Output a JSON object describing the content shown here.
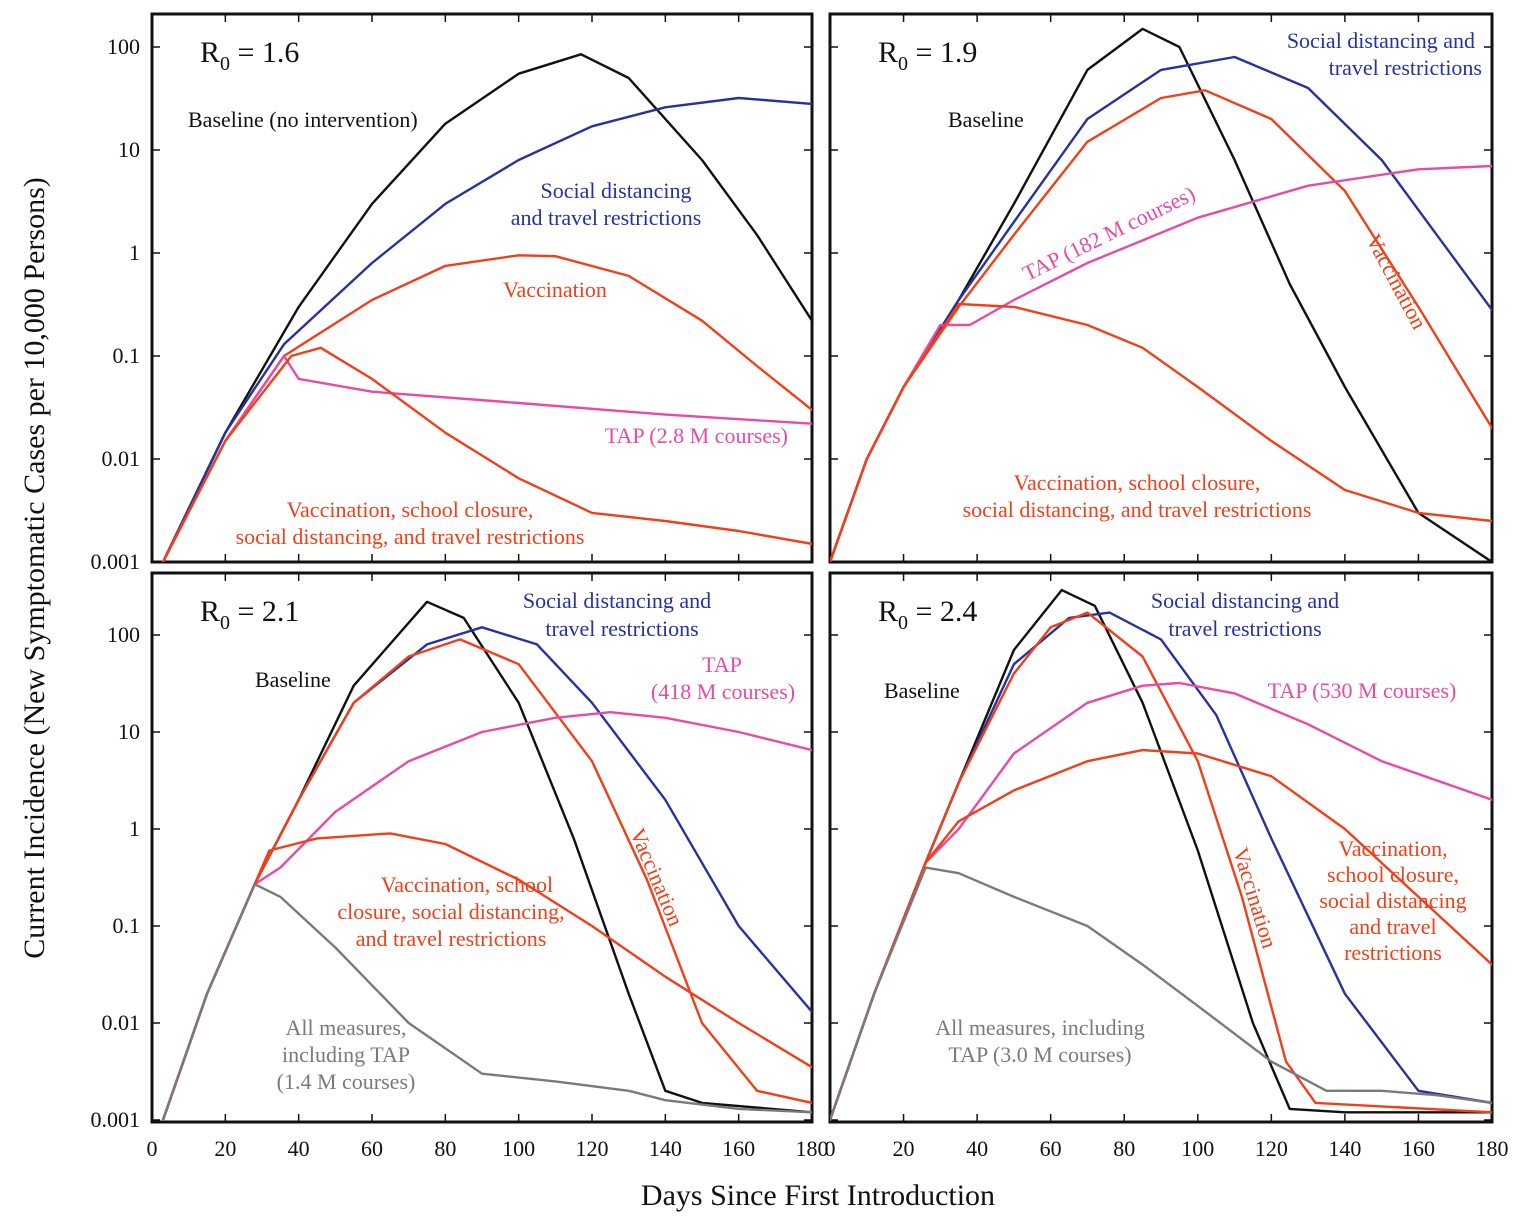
{
  "figure": {
    "ylabel": "Current Incidence (New Symptomatic Cases per 10,000 Persons)",
    "xlabel": "Days Since First Introduction"
  },
  "colors": {
    "baseline": "#111111",
    "social": "#2632a0",
    "vaccination": "#f0401a",
    "combined": "#f0401a",
    "tap": "#e84aa6",
    "all": "#7a7a7a"
  },
  "chart_data": [
    {
      "type": "line",
      "title_main": "R",
      "title_sub": "0",
      "title_rest": " = 1.6",
      "xlim": [
        0,
        180
      ],
      "ylim": [
        0.001,
        100
      ],
      "yscale": "log",
      "xticks": [],
      "yticks": [
        "0.001",
        "0.01",
        "0.1",
        "1",
        "10",
        "100"
      ],
      "series": [
        {
          "key": "baseline",
          "name": "Baseline (no intervention)",
          "x": [
            3,
            20,
            40,
            60,
            80,
            100,
            117,
            130,
            150,
            165,
            180
          ],
          "y": [
            0.001,
            0.018,
            0.3,
            3,
            18,
            55,
            85,
            50,
            8,
            1.5,
            0.22
          ]
        },
        {
          "key": "social",
          "name": "Social distancing and travel restrictions",
          "x": [
            3,
            20,
            36,
            60,
            80,
            100,
            120,
            140,
            160,
            180
          ],
          "y": [
            0.001,
            0.018,
            0.13,
            0.8,
            3,
            8,
            17,
            26,
            32,
            28
          ]
        },
        {
          "key": "vaccination",
          "name": "Vaccination",
          "x": [
            3,
            20,
            36,
            60,
            80,
            100,
            110,
            130,
            150,
            165,
            180
          ],
          "y": [
            0.001,
            0.015,
            0.1,
            0.35,
            0.75,
            0.95,
            0.93,
            0.6,
            0.22,
            0.08,
            0.03
          ]
        },
        {
          "key": "tap",
          "name": "TAP (2.8 M courses)",
          "x": [
            3,
            20,
            36,
            40,
            60,
            100,
            140,
            180
          ],
          "y": [
            0.001,
            0.015,
            0.1,
            0.06,
            0.045,
            0.035,
            0.027,
            0.022
          ]
        },
        {
          "key": "combined",
          "name": "Vaccination, school closure, social distancing, and travel restrictions",
          "x": [
            3,
            20,
            38,
            46,
            60,
            80,
            100,
            120,
            140,
            160,
            180
          ],
          "y": [
            0.001,
            0.015,
            0.1,
            0.12,
            0.06,
            0.018,
            0.0065,
            0.003,
            0.0025,
            0.002,
            0.0015
          ]
        }
      ],
      "labels": [
        {
          "text": "Baseline (no intervention)",
          "color": "baseline"
        },
        {
          "text": "Social distancing",
          "color": "social"
        },
        {
          "text": "and travel restrictions",
          "color": "social"
        },
        {
          "text": "Vaccination",
          "color": "vaccination"
        },
        {
          "text": "TAP (2.8 M courses)",
          "color": "tap"
        },
        {
          "text": "Vaccination, school closure,",
          "color": "combined"
        },
        {
          "text": "social distancing, and travel restrictions",
          "color": "combined"
        }
      ]
    },
    {
      "type": "line",
      "title_main": "R",
      "title_sub": "0",
      "title_rest": " = 1.9",
      "xlim": [
        0,
        180
      ],
      "ylim": [
        0.001,
        100
      ],
      "yscale": "log",
      "xticks": [],
      "yticks": [],
      "series": [
        {
          "key": "baseline",
          "name": "Baseline",
          "x": [
            0,
            10,
            20,
            35,
            50,
            70,
            85,
            95,
            110,
            125,
            140,
            160,
            180
          ],
          "y": [
            0.001,
            0.01,
            0.05,
            0.35,
            3,
            60,
            150,
            100,
            8,
            0.5,
            0.05,
            0.003,
            0.001
          ]
        },
        {
          "key": "social",
          "name": "Social distancing and travel restrictions",
          "x": [
            0,
            10,
            20,
            35,
            50,
            70,
            90,
            110,
            130,
            150,
            165,
            180
          ],
          "y": [
            0.001,
            0.01,
            0.05,
            0.35,
            2,
            20,
            60,
            80,
            40,
            8,
            1.5,
            0.28
          ]
        },
        {
          "key": "vaccination",
          "name": "Vaccination",
          "x": [
            0,
            10,
            20,
            35,
            50,
            70,
            90,
            102,
            120,
            140,
            160,
            180
          ],
          "y": [
            0.001,
            0.01,
            0.05,
            0.3,
            1.5,
            12,
            32,
            38,
            20,
            4,
            0.3,
            0.02
          ]
        },
        {
          "key": "tap",
          "name": "TAP (182 M courses)",
          "x": [
            0,
            10,
            20,
            30,
            38,
            50,
            70,
            100,
            130,
            160,
            180
          ],
          "y": [
            0.001,
            0.01,
            0.05,
            0.2,
            0.2,
            0.35,
            0.8,
            2.2,
            4.5,
            6.5,
            7
          ]
        },
        {
          "key": "combined",
          "name": "Vaccination, school closure, social distancing, and travel restrictions",
          "x": [
            0,
            10,
            20,
            35,
            50,
            70,
            85,
            100,
            120,
            140,
            160,
            180
          ],
          "y": [
            0.001,
            0.01,
            0.05,
            0.32,
            0.3,
            0.2,
            0.12,
            0.05,
            0.015,
            0.005,
            0.003,
            0.0025
          ]
        }
      ],
      "labels": [
        {
          "text": "Baseline",
          "color": "baseline"
        },
        {
          "text": "Social distancing and",
          "color": "social"
        },
        {
          "text": "travel restrictions",
          "color": "social"
        },
        {
          "text": "TAP (182 M courses)",
          "color": "tap"
        },
        {
          "text": "Vaccination",
          "color": "vaccination"
        },
        {
          "text": "Vaccination, school closure,",
          "color": "combined"
        },
        {
          "text": "social distancing, and travel restrictions",
          "color": "combined"
        }
      ]
    },
    {
      "type": "line",
      "title_main": "R",
      "title_sub": "0",
      "title_rest": " = 2.1",
      "xlim": [
        0,
        180
      ],
      "ylim": [
        0.001,
        100
      ],
      "yscale": "log",
      "xticks": [
        "0",
        "20",
        "40",
        "60",
        "80",
        "100",
        "120",
        "140",
        "160",
        "180"
      ],
      "yticks": [
        "0.001",
        "0.01",
        "0.1",
        "1",
        "10",
        "100"
      ],
      "series": [
        {
          "key": "baseline",
          "name": "Baseline",
          "x": [
            3,
            15,
            28,
            40,
            55,
            75,
            85,
            100,
            115,
            130,
            140,
            150,
            180
          ],
          "y": [
            0.001,
            0.02,
            0.27,
            2,
            30,
            220,
            150,
            20,
            0.8,
            0.02,
            0.002,
            0.0015,
            0.0012
          ]
        },
        {
          "key": "social",
          "name": "Social distancing and travel restrictions",
          "x": [
            3,
            15,
            28,
            40,
            55,
            75,
            90,
            105,
            120,
            140,
            160,
            180
          ],
          "y": [
            0.001,
            0.02,
            0.27,
            2,
            20,
            80,
            120,
            80,
            20,
            2,
            0.1,
            0.013
          ]
        },
        {
          "key": "vaccination",
          "name": "Vaccination",
          "x": [
            3,
            15,
            28,
            40,
            55,
            70,
            84,
            100,
            120,
            135,
            150,
            165,
            180
          ],
          "y": [
            0.001,
            0.02,
            0.27,
            2,
            20,
            60,
            90,
            50,
            5,
            0.3,
            0.01,
            0.002,
            0.0015
          ]
        },
        {
          "key": "tap",
          "name": "TAP (418 M courses)",
          "x": [
            3,
            15,
            28,
            35,
            50,
            70,
            90,
            110,
            125,
            140,
            160,
            180
          ],
          "y": [
            0.001,
            0.02,
            0.27,
            0.4,
            1.5,
            5,
            10,
            14,
            16,
            14,
            10,
            6.5
          ]
        },
        {
          "key": "combined",
          "name": "Vaccination, school closure, social distancing, and travel restrictions",
          "x": [
            3,
            15,
            28,
            32,
            45,
            65,
            80,
            100,
            120,
            140,
            160,
            180
          ],
          "y": [
            0.001,
            0.02,
            0.27,
            0.6,
            0.8,
            0.9,
            0.7,
            0.3,
            0.1,
            0.03,
            0.01,
            0.0035
          ]
        },
        {
          "key": "all",
          "name": "All measures, including TAP (1.4 M courses)",
          "x": [
            3,
            15,
            28,
            35,
            50,
            70,
            90,
            110,
            130,
            140,
            160,
            180
          ],
          "y": [
            0.001,
            0.02,
            0.27,
            0.2,
            0.06,
            0.01,
            0.003,
            0.0025,
            0.002,
            0.0016,
            0.0013,
            0.0012
          ]
        }
      ],
      "labels": [
        {
          "text": "Baseline",
          "color": "baseline"
        },
        {
          "text": "Social distancing and",
          "color": "social"
        },
        {
          "text": "travel restrictions",
          "color": "social"
        },
        {
          "text": "TAP",
          "color": "tap"
        },
        {
          "text": "(418 M courses)",
          "color": "tap"
        },
        {
          "text": "Vaccination",
          "color": "vaccination"
        },
        {
          "text": "Vaccination, school",
          "color": "combined"
        },
        {
          "text": "closure, social distancing,",
          "color": "combined"
        },
        {
          "text": "and travel restrictions",
          "color": "combined"
        },
        {
          "text": "All measures,",
          "color": "all"
        },
        {
          "text": "including TAP",
          "color": "all"
        },
        {
          "text": "(1.4 M courses)",
          "color": "all"
        }
      ]
    },
    {
      "type": "line",
      "title_main": "R",
      "title_sub": "0",
      "title_rest": " = 2.4",
      "xlim": [
        0,
        180
      ],
      "ylim": [
        0.001,
        100
      ],
      "yscale": "log",
      "xticks": [
        "0",
        "20",
        "40",
        "60",
        "80",
        "100",
        "120",
        "140",
        "160",
        "180"
      ],
      "yticks": [],
      "series": [
        {
          "key": "baseline",
          "name": "Baseline",
          "x": [
            0,
            12,
            26,
            35,
            50,
            63,
            72,
            85,
            100,
            115,
            125,
            140,
            180
          ],
          "y": [
            0.001,
            0.02,
            0.45,
            3,
            70,
            290,
            200,
            20,
            0.6,
            0.01,
            0.0013,
            0.0012,
            0.0012
          ]
        },
        {
          "key": "social",
          "name": "Social distancing and travel restrictions",
          "x": [
            0,
            12,
            26,
            35,
            50,
            65,
            76,
            90,
            105,
            120,
            140,
            160,
            180
          ],
          "y": [
            0.001,
            0.02,
            0.45,
            3,
            50,
            150,
            170,
            90,
            15,
            0.8,
            0.02,
            0.002,
            0.0015
          ]
        },
        {
          "key": "vaccination",
          "name": "Vaccination",
          "x": [
            0,
            12,
            26,
            35,
            50,
            60,
            70,
            85,
            100,
            112,
            124,
            132,
            180
          ],
          "y": [
            0.001,
            0.02,
            0.45,
            3,
            40,
            120,
            170,
            60,
            5,
            0.2,
            0.004,
            0.0015,
            0.0012
          ]
        },
        {
          "key": "tap",
          "name": "TAP (530 M courses)",
          "x": [
            0,
            12,
            26,
            35,
            50,
            70,
            85,
            95,
            110,
            130,
            150,
            180
          ],
          "y": [
            0.001,
            0.02,
            0.45,
            1,
            6,
            20,
            30,
            32,
            25,
            12,
            5,
            2
          ]
        },
        {
          "key": "combined",
          "name": "Vaccination, school closure, social distancing and travel restrictions",
          "x": [
            0,
            12,
            26,
            35,
            50,
            70,
            85,
            100,
            120,
            140,
            160,
            180
          ],
          "y": [
            0.001,
            0.02,
            0.45,
            1.2,
            2.5,
            5,
            6.5,
            6,
            3.5,
            1,
            0.2,
            0.04
          ]
        },
        {
          "key": "all",
          "name": "All measures, including TAP (3.0 M courses)",
          "x": [
            0,
            12,
            26,
            35,
            50,
            70,
            85,
            100,
            120,
            135,
            150,
            165,
            180
          ],
          "y": [
            0.001,
            0.02,
            0.4,
            0.35,
            0.2,
            0.1,
            0.04,
            0.015,
            0.004,
            0.002,
            0.002,
            0.0018,
            0.0015
          ]
        }
      ],
      "labels": [
        {
          "text": "Baseline",
          "color": "baseline"
        },
        {
          "text": "Social distancing and",
          "color": "social"
        },
        {
          "text": "travel restrictions",
          "color": "social"
        },
        {
          "text": "TAP (530 M courses)",
          "color": "tap"
        },
        {
          "text": "Vaccination",
          "color": "vaccination"
        },
        {
          "text": "Vaccination,",
          "color": "combined"
        },
        {
          "text": "school closure,",
          "color": "combined"
        },
        {
          "text": "social distancing",
          "color": "combined"
        },
        {
          "text": "and travel",
          "color": "combined"
        },
        {
          "text": "restrictions",
          "color": "combined"
        },
        {
          "text": "All measures, including",
          "color": "all"
        },
        {
          "text": "TAP (3.0 M courses)",
          "color": "all"
        }
      ]
    }
  ]
}
